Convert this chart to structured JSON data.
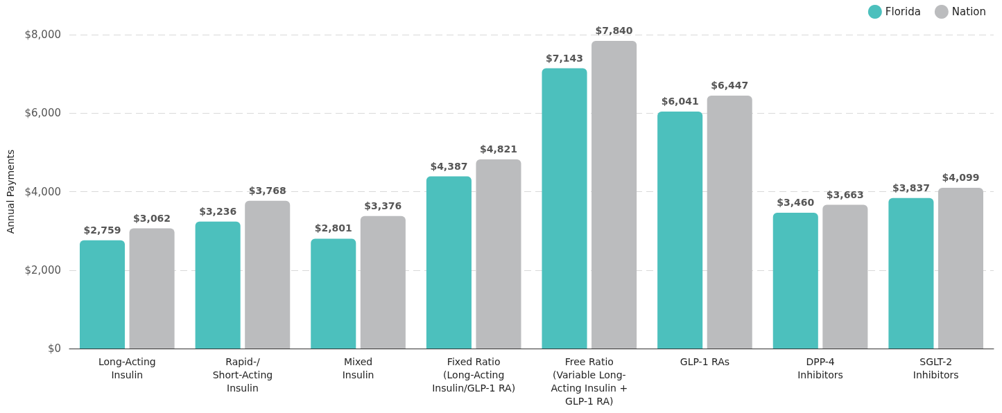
{
  "chart_data": {
    "type": "bar",
    "ylabel": "Annual Payments",
    "categories": [
      "Long-Acting\nInsulin",
      "Rapid-/\nShort-Acting\nInsulin",
      "Mixed\nInsulin",
      "Fixed Ratio\n(Long-Acting\nInsulin/GLP-1 RA)",
      "Free Ratio\n(Variable Long-\nActing Insulin +\nGLP-1 RA)",
      "GLP-1 RAs",
      "DPP-4\nInhibitors",
      "SGLT-2\nInhibitors"
    ],
    "series": [
      {
        "name": "Florida",
        "color": "#4cc0bd",
        "values": [
          2759,
          3236,
          2801,
          4387,
          7143,
          6041,
          3460,
          3837
        ],
        "value_labels": [
          "$2,759",
          "$3,236",
          "$2,801",
          "$4,387",
          "$7,143",
          "$6,041",
          "$3,460",
          "$3,837"
        ]
      },
      {
        "name": "Nation",
        "color": "#bbbcbe",
        "values": [
          3062,
          3768,
          3376,
          4821,
          7840,
          6447,
          3663,
          4099
        ],
        "value_labels": [
          "$3,062",
          "$3,768",
          "$3,376",
          "$4,821",
          "$7,840",
          "$6,447",
          "$3,663",
          "$4,099"
        ]
      }
    ],
    "ylim": [
      0,
      8000
    ],
    "yticks": [
      {
        "value": 0,
        "label": "$0"
      },
      {
        "value": 2000,
        "label": "$2,000"
      },
      {
        "value": 4000,
        "label": "$4,000"
      },
      {
        "value": 6000,
        "label": "$6,000"
      },
      {
        "value": 8000,
        "label": "$8,000"
      }
    ],
    "grid": "y",
    "legend": "top right"
  }
}
